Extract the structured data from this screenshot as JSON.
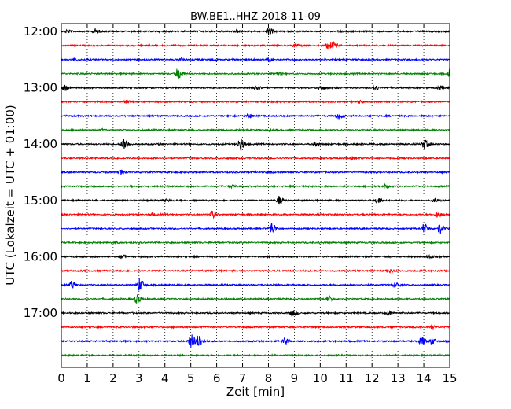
{
  "chart_data": {
    "type": "line",
    "title": "BW.BE1..HHZ 2018-11-09",
    "xlabel": "Zeit  [min]",
    "ylabel": "UTC (Lokalzeit = UTC + 01:00)",
    "xlim": [
      0,
      15
    ],
    "x_ticks": [
      "0",
      "1",
      "2",
      "3",
      "4",
      "5",
      "6",
      "7",
      "8",
      "9",
      "10",
      "11",
      "12",
      "13",
      "14",
      "15"
    ],
    "y_tick_labels": [
      "12:00",
      "13:00",
      "14:00",
      "15:00",
      "16:00",
      "17:00"
    ],
    "grid": "vertical-dotted",
    "trace_colors": [
      "#000000",
      "#ff0000",
      "#0000ff",
      "#008000"
    ],
    "trace_interval_minutes": 15,
    "traces": [
      {
        "start": "12:00",
        "events": [
          [
            0.2,
            0.2
          ],
          [
            1.3,
            0.25
          ],
          [
            6.8,
            0.2
          ],
          [
            8.0,
            0.4
          ]
        ]
      },
      {
        "start": "12:15",
        "events": [
          [
            9.0,
            0.2
          ],
          [
            10.3,
            0.35
          ],
          [
            10.5,
            0.3
          ]
        ]
      },
      {
        "start": "12:30",
        "events": [
          [
            0.5,
            0.15
          ],
          [
            4.6,
            0.2
          ],
          [
            5.8,
            0.15
          ],
          [
            8.0,
            0.2
          ]
        ]
      },
      {
        "start": "12:45",
        "events": [
          [
            4.5,
            0.7
          ],
          [
            8.3,
            0.2
          ],
          [
            15.0,
            0.55
          ]
        ]
      },
      {
        "start": "13:00",
        "events": [
          [
            0.1,
            0.35
          ],
          [
            7.5,
            0.4
          ],
          [
            10.0,
            0.3
          ],
          [
            12.1,
            0.25
          ],
          [
            14.6,
            0.25
          ]
        ]
      },
      {
        "start": "13:15",
        "events": [
          [
            2.5,
            0.15
          ],
          [
            11.5,
            0.15
          ]
        ]
      },
      {
        "start": "13:30",
        "events": [
          [
            7.2,
            0.3
          ],
          [
            10.7,
            0.35
          ]
        ]
      },
      {
        "start": "13:45",
        "events": [
          [
            1.5,
            0.1
          ],
          [
            8.0,
            0.1
          ]
        ]
      },
      {
        "start": "14:00",
        "events": [
          [
            2.4,
            0.75
          ],
          [
            6.9,
            0.8
          ],
          [
            9.8,
            0.2
          ],
          [
            14.0,
            0.5
          ]
        ]
      },
      {
        "start": "14:15",
        "events": [
          [
            11.2,
            0.15
          ]
        ]
      },
      {
        "start": "14:30",
        "events": [
          [
            2.3,
            0.25
          ],
          [
            8.0,
            0.1
          ]
        ]
      },
      {
        "start": "14:45",
        "events": [
          [
            6.5,
            0.15
          ],
          [
            12.5,
            0.2
          ]
        ]
      },
      {
        "start": "15:00",
        "events": [
          [
            4.0,
            0.2
          ],
          [
            8.4,
            0.5
          ],
          [
            12.2,
            0.4
          ],
          [
            14.4,
            0.2
          ]
        ]
      },
      {
        "start": "15:15",
        "events": [
          [
            3.5,
            0.15
          ],
          [
            5.8,
            0.4
          ],
          [
            14.5,
            0.35
          ]
        ]
      },
      {
        "start": "15:30",
        "events": [
          [
            8.1,
            0.75
          ],
          [
            14.0,
            0.55
          ],
          [
            14.6,
            0.55
          ]
        ]
      },
      {
        "start": "15:45",
        "events": [
          [
            2.0,
            0.1
          ],
          [
            10.0,
            0.1
          ]
        ]
      },
      {
        "start": "16:00",
        "events": [
          [
            2.3,
            0.2
          ],
          [
            14.2,
            0.2
          ]
        ]
      },
      {
        "start": "16:15",
        "events": [
          [
            12.7,
            0.2
          ]
        ]
      },
      {
        "start": "16:30",
        "events": [
          [
            0.4,
            0.4
          ],
          [
            3.0,
            0.8
          ],
          [
            12.9,
            0.3
          ]
        ]
      },
      {
        "start": "16:45",
        "events": [
          [
            2.9,
            0.5
          ],
          [
            10.3,
            0.3
          ]
        ]
      },
      {
        "start": "17:00",
        "events": [
          [
            8.9,
            0.35
          ],
          [
            12.6,
            0.2
          ]
        ]
      },
      {
        "start": "17:15",
        "events": [
          [
            14.3,
            0.2
          ]
        ]
      },
      {
        "start": "17:30",
        "events": [
          [
            5.0,
            0.8
          ],
          [
            5.3,
            0.7
          ],
          [
            8.6,
            0.35
          ],
          [
            13.9,
            0.55
          ],
          [
            14.3,
            0.4
          ]
        ]
      },
      {
        "start": "17:45",
        "events": []
      }
    ]
  }
}
